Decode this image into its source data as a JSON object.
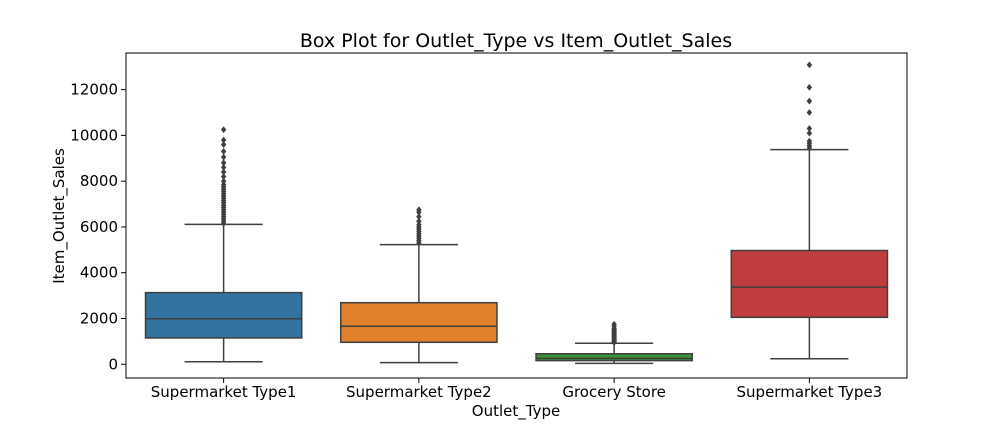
{
  "chart_data": {
    "type": "box",
    "title": "Box Plot for Outlet_Type vs Item_Outlet_Sales",
    "xlabel": "Outlet_Type",
    "ylabel": "Item_Outlet_Sales",
    "ylim": [
      -600,
      13600
    ],
    "yticks": [
      0,
      2000,
      4000,
      6000,
      8000,
      10000,
      12000
    ],
    "ytick_labels": [
      "0",
      "2000",
      "4000",
      "6000",
      "8000",
      "10000",
      "12000"
    ],
    "grid": false,
    "categories": [
      "Supermarket Type1",
      "Supermarket Type2",
      "Grocery Store",
      "Supermarket Type3"
    ],
    "boxes": [
      {
        "category": "Supermarket Type1",
        "color": "#3274a1",
        "whisker_low": 110,
        "q1": 1150,
        "median": 1990,
        "q3": 3130,
        "whisker_high": 6110,
        "outliers": [
          6150,
          6250,
          6350,
          6450,
          6550,
          6650,
          6750,
          6850,
          6950,
          7050,
          7150,
          7250,
          7350,
          7450,
          7550,
          7650,
          7750,
          7850,
          8000,
          8200,
          8400,
          8600,
          8800,
          9050,
          9300,
          9600,
          9800,
          10250
        ]
      },
      {
        "category": "Supermarket Type2",
        "color": "#e1812c",
        "whisker_low": 70,
        "q1": 960,
        "median": 1660,
        "q3": 2690,
        "whisker_high": 5230,
        "outliers": [
          5300,
          5400,
          5500,
          5600,
          5700,
          5800,
          5900,
          6000,
          6100,
          6250,
          6450,
          6650,
          6750
        ]
      },
      {
        "category": "Grocery Store",
        "color": "#3a923a",
        "whisker_low": 40,
        "q1": 160,
        "median": 260,
        "q3": 460,
        "whisker_high": 920,
        "outliers": [
          950,
          1000,
          1050,
          1100,
          1150,
          1200,
          1250,
          1300,
          1350,
          1400,
          1450,
          1500,
          1550,
          1650,
          1750
        ]
      },
      {
        "category": "Supermarket Type3",
        "color": "#c03d3e",
        "whisker_low": 240,
        "q1": 2050,
        "median": 3370,
        "q3": 4970,
        "whisker_high": 9380,
        "outliers": [
          9450,
          9550,
          9650,
          9750,
          10100,
          10300,
          11000,
          11500,
          12100,
          13080
        ]
      }
    ]
  }
}
